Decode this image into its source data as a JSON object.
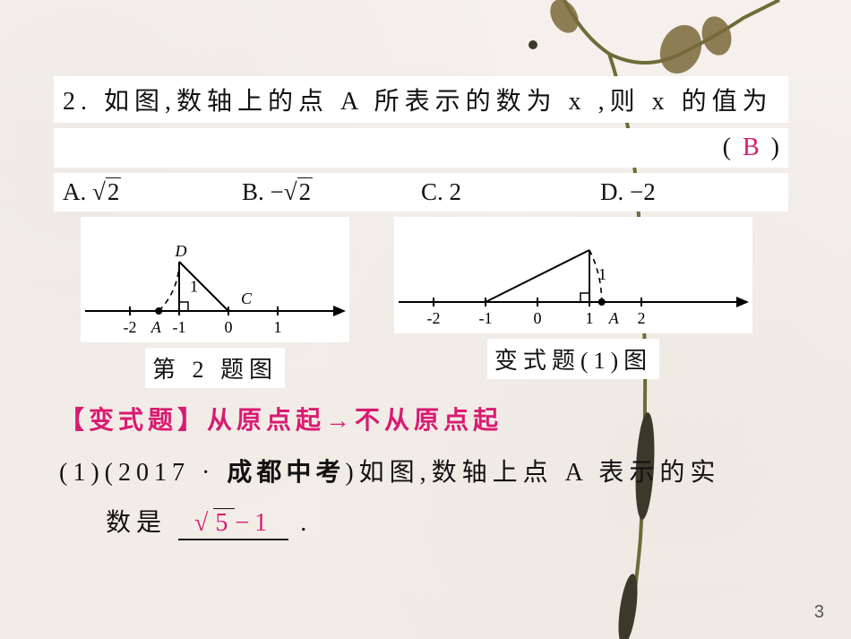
{
  "page_number": "3",
  "colors": {
    "accent": "#d81b72",
    "text": "#111111",
    "plant_stem": "#6d6b38",
    "plant_leaf": "#7a6a3a",
    "plant_dark": "#3b3a2a",
    "bg": "#f5f0ec",
    "white": "#ffffff"
  },
  "question": {
    "number": "2.",
    "stem_text": "如图,数轴上的点 A 所表示的数为 x ,则 x 的值为",
    "answer_paren_open": "(",
    "answer_paren_close": ")",
    "answer": "B",
    "options": {
      "A": {
        "label": "A.",
        "value_tex": "√2",
        "radicand": "2",
        "neg": false
      },
      "B": {
        "label": "B.",
        "value_tex": "−√2",
        "radicand": "2",
        "neg": true
      },
      "C": {
        "label": "C.",
        "value_tex": "2",
        "plain": "2"
      },
      "D": {
        "label": "D.",
        "value_tex": "−2",
        "plain": "−2"
      }
    }
  },
  "figures": {
    "q2": {
      "caption": "第 2 题图",
      "number_line": {
        "ticks": [
          "-2",
          "-1",
          "0",
          "1"
        ],
        "tick_x": [
          -2,
          -1,
          0,
          1
        ],
        "A_x": -1.414,
        "A_label": "A",
        "D_label": "D",
        "C_label": "C",
        "D_x": -1,
        "D_y": 1,
        "C_x": 0,
        "C_y": 0,
        "seg_label": "1",
        "arc_from_x": 0,
        "arc_to_x": -1.414,
        "arc_radius": 1.414,
        "axis_range": [
          -2.6,
          1.8
        ]
      },
      "style": {
        "stroke": "#000000",
        "stroke_width": 2,
        "dash": "6,5",
        "font_size": 18,
        "font_family": "Times New Roman, serif"
      }
    },
    "variant1": {
      "caption": "变式题(1)图",
      "number_line": {
        "ticks": [
          "-2",
          "-1",
          "0",
          "1",
          "2"
        ],
        "tick_x": [
          -2,
          -1,
          0,
          1,
          2
        ],
        "A_x": 1.236,
        "A_label": "A",
        "seg_label": "1",
        "vert_x": 1,
        "vert_h": 1,
        "hyp_from_x": -1,
        "hyp_to_x": 1,
        "hyp_to_y": 1,
        "arc_center_x": -1,
        "arc_radius": 2.236,
        "arc_to_x": 1.236,
        "axis_range": [
          -2.6,
          3.2
        ]
      },
      "style": {
        "stroke": "#000000",
        "stroke_width": 2,
        "dash": "6,5",
        "font_size": 18,
        "font_family": "Times New Roman, serif"
      }
    }
  },
  "variant": {
    "title": "【变式题】从原点起→不从原点起",
    "sub_number": "(1)",
    "source_year": "(2017",
    "source_dot": "·",
    "source_name": "成都中考",
    "source_close": ")",
    "sub_stem": "如图,数轴上点 A 表示的实",
    "sub_stem_line2_pre": "数是",
    "answer_pre_radicand": "5",
    "answer_suffix": "−1",
    "sub_stem_line2_post": "."
  }
}
